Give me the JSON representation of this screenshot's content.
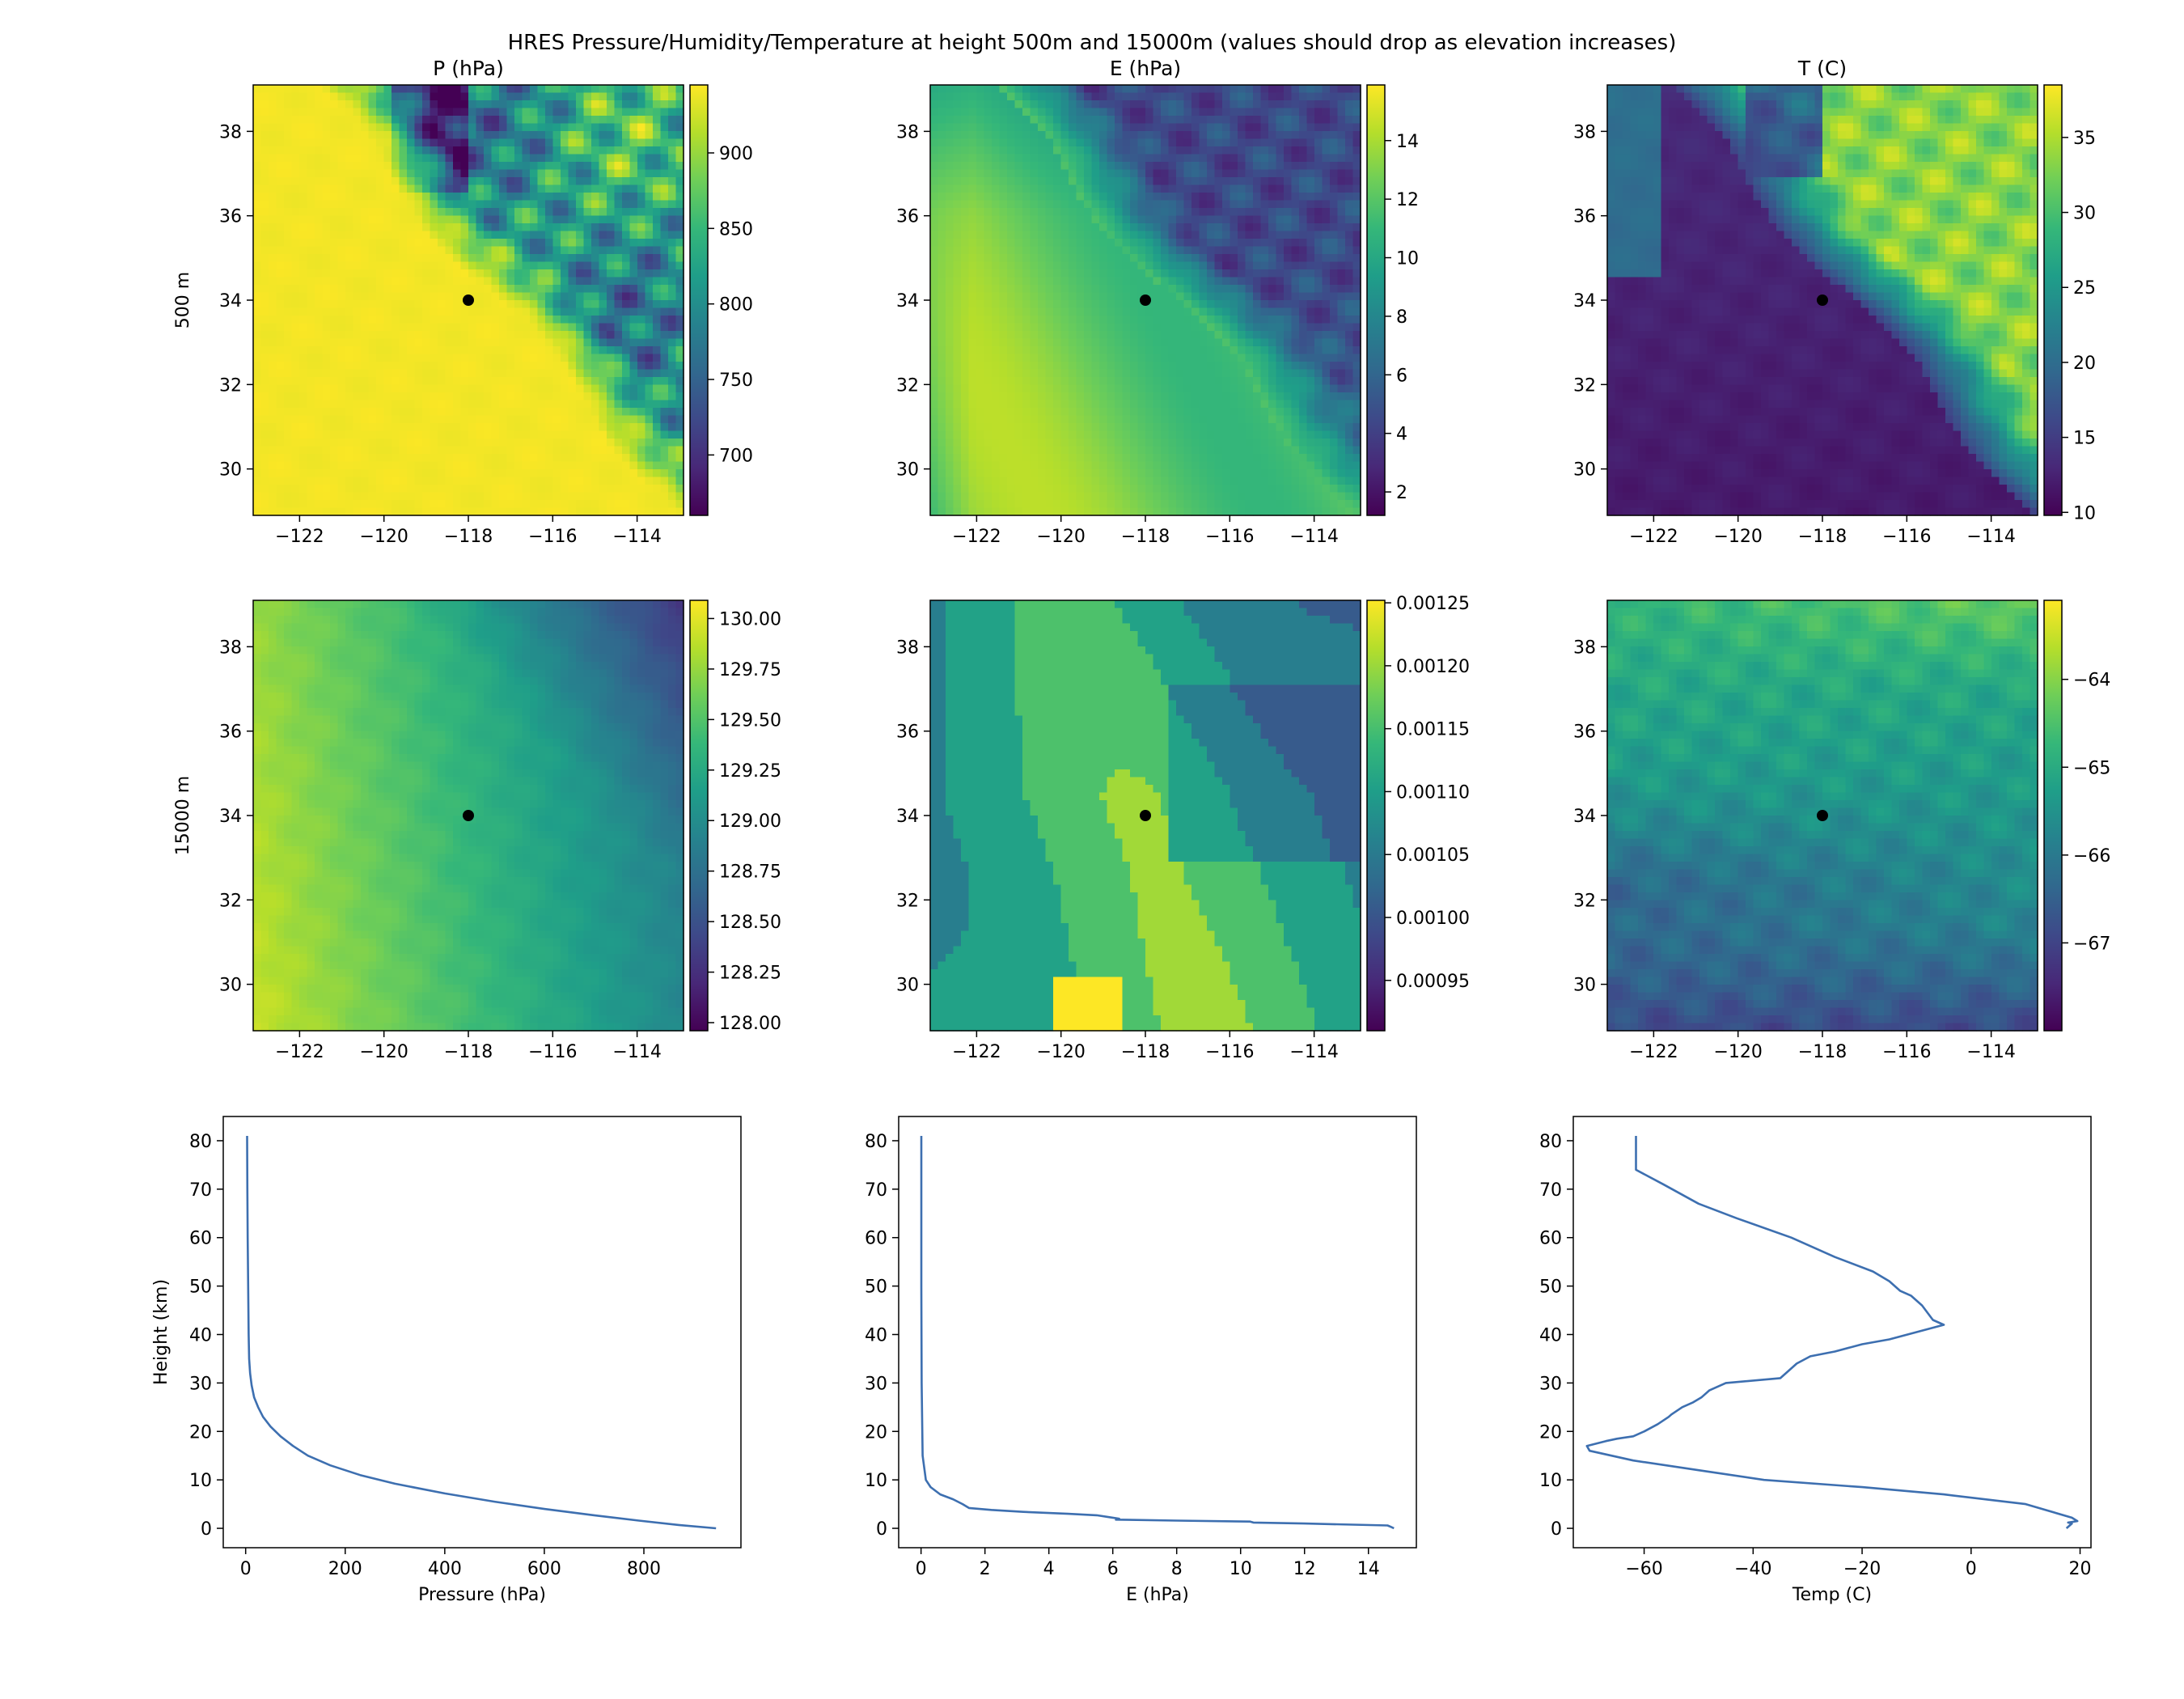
{
  "suptitle": "HRES Pressure/Humidity/Temperature at height 500m and 15000m (values should drop as elevation increases)",
  "colormap": [
    "#440154",
    "#482878",
    "#3e4989",
    "#31688e",
    "#26828e",
    "#1f9e89",
    "#35b779",
    "#6ece58",
    "#b5de2b",
    "#fde725"
  ],
  "marker_color": "#000000",
  "line_color": "#3d6fb0",
  "chart_data": [
    {
      "type": "heatmap",
      "id": "p500",
      "title": "P (hPa)",
      "row_label": "500 m",
      "xlim": [
        -123.1,
        -112.9
      ],
      "ylim": [
        28.9,
        39.1
      ],
      "xticks": [
        "-122",
        "-120",
        "-118",
        "-116",
        "-114"
      ],
      "yticks": [
        "30",
        "32",
        "34",
        "36",
        "38"
      ],
      "clim": [
        660,
        945
      ],
      "cticks": [
        "700",
        "750",
        "800",
        "850",
        "900"
      ],
      "marker": {
        "lon": -118,
        "lat": 34
      },
      "pattern": "pressure500"
    },
    {
      "type": "heatmap",
      "id": "e500",
      "title": "E (hPa)",
      "xlim": [
        -123.1,
        -112.9
      ],
      "ylim": [
        28.9,
        39.1
      ],
      "xticks": [
        "-122",
        "-120",
        "-118",
        "-116",
        "-114"
      ],
      "yticks": [
        "30",
        "32",
        "34",
        "36",
        "38"
      ],
      "clim": [
        1.2,
        15.9
      ],
      "cticks": [
        "2",
        "4",
        "6",
        "8",
        "10",
        "12",
        "14"
      ],
      "marker": {
        "lon": -118,
        "lat": 34
      },
      "pattern": "humidity500"
    },
    {
      "type": "heatmap",
      "id": "t500",
      "title": "T (C)",
      "xlim": [
        -123.1,
        -112.9
      ],
      "ylim": [
        28.9,
        39.1
      ],
      "xticks": [
        "-122",
        "-120",
        "-118",
        "-116",
        "-114"
      ],
      "yticks": [
        "30",
        "32",
        "34",
        "36",
        "38"
      ],
      "clim": [
        9.8,
        38.5
      ],
      "cticks": [
        "10",
        "15",
        "20",
        "25",
        "30",
        "35"
      ],
      "marker": {
        "lon": -118,
        "lat": 34
      },
      "pattern": "temp500"
    },
    {
      "type": "heatmap",
      "id": "p15000",
      "row_label": "15000 m",
      "xlim": [
        -123.1,
        -112.9
      ],
      "ylim": [
        28.9,
        39.1
      ],
      "xticks": [
        "-122",
        "-120",
        "-118",
        "-116",
        "-114"
      ],
      "yticks": [
        "30",
        "32",
        "34",
        "36",
        "38"
      ],
      "clim": [
        127.96,
        130.09
      ],
      "cticks": [
        "128.00",
        "128.25",
        "128.50",
        "128.75",
        "129.00",
        "129.25",
        "129.50",
        "129.75",
        "130.00"
      ],
      "marker": {
        "lon": -118,
        "lat": 34
      },
      "pattern": "pressure15000"
    },
    {
      "type": "heatmap",
      "id": "e15000",
      "xlim": [
        -123.1,
        -112.9
      ],
      "ylim": [
        28.9,
        39.1
      ],
      "xticks": [
        "-122",
        "-120",
        "-118",
        "-116",
        "-114"
      ],
      "yticks": [
        "30",
        "32",
        "34",
        "36",
        "38"
      ],
      "clim": [
        0.00091,
        0.001252
      ],
      "cticks": [
        "0.00095",
        "0.00100",
        "0.00105",
        "0.00110",
        "0.00115",
        "0.00120",
        "0.00125"
      ],
      "marker": {
        "lon": -118,
        "lat": 34
      },
      "pattern": "humidity15000"
    },
    {
      "type": "heatmap",
      "id": "t15000",
      "xlim": [
        -123.1,
        -112.9
      ],
      "ylim": [
        28.9,
        39.1
      ],
      "xticks": [
        "-122",
        "-120",
        "-118",
        "-116",
        "-114"
      ],
      "yticks": [
        "30",
        "32",
        "34",
        "36",
        "38"
      ],
      "clim": [
        -68.0,
        -63.1
      ],
      "cticks": [
        "-67",
        "-66",
        "-65",
        "-64"
      ],
      "marker": {
        "lon": -118,
        "lat": 34
      },
      "pattern": "temp15000"
    },
    {
      "type": "line",
      "id": "p_profile",
      "xlabel": "Pressure (hPa)",
      "ylabel": "Height (km)",
      "xlim": [
        -45,
        995
      ],
      "ylim": [
        -4,
        85
      ],
      "xticks": [
        "0",
        "200",
        "400",
        "600",
        "800"
      ],
      "yticks": [
        "0",
        "10",
        "20",
        "30",
        "40",
        "50",
        "60",
        "70",
        "80"
      ],
      "x": [
        945,
        870,
        790,
        700,
        600,
        500,
        400,
        300,
        230,
        170,
        125,
        95,
        70,
        50,
        35,
        25,
        17,
        12,
        9,
        7,
        6,
        5,
        4,
        3.5,
        3
      ],
      "y": [
        0,
        0.7,
        1.6,
        2.7,
        4.0,
        5.5,
        7.2,
        9.2,
        11.0,
        13.0,
        15.0,
        17.0,
        19.0,
        21.0,
        23.0,
        25.0,
        27.0,
        29.5,
        32.0,
        35.0,
        40.0,
        50.0,
        60.0,
        70.0,
        81.0
      ]
    },
    {
      "type": "line",
      "id": "e_profile",
      "xlabel": "E (hPa)",
      "xlim": [
        -0.7,
        15.5
      ],
      "ylim": [
        -4,
        85
      ],
      "xticks": [
        "0",
        "2",
        "4",
        "6",
        "8",
        "10",
        "12",
        "14"
      ],
      "yticks": [
        "0",
        "10",
        "20",
        "30",
        "40",
        "50",
        "60",
        "70",
        "80"
      ],
      "x": [
        14.8,
        14.7,
        14.6,
        12,
        10.4,
        10.3,
        8,
        6.1,
        6.2,
        5.9,
        5.5,
        4.6,
        3.2,
        2.2,
        1.5,
        1.3,
        1.0,
        0.6,
        0.3,
        0.15,
        0.05,
        0.02,
        0.01,
        0.01,
        0.01
      ],
      "y": [
        0,
        0.3,
        0.6,
        1.0,
        1.2,
        1.4,
        1.6,
        1.8,
        2.0,
        2.3,
        2.7,
        3.0,
        3.4,
        3.8,
        4.2,
        5.0,
        6.0,
        7.0,
        8.5,
        10.0,
        15.0,
        30.0,
        50.0,
        70.0,
        81.0
      ]
    },
    {
      "type": "line",
      "id": "t_profile",
      "xlabel": "Temp (C)",
      "xlim": [
        -73,
        22
      ],
      "ylim": [
        -4,
        85
      ],
      "xticks": [
        "-60",
        "-40",
        "-20",
        "0",
        "20"
      ],
      "yticks": [
        "0",
        "10",
        "20",
        "30",
        "40",
        "50",
        "60",
        "70",
        "80"
      ],
      "x": [
        17.5,
        18.5,
        17.8,
        19.5,
        18.5,
        10,
        -5,
        -20,
        -38,
        -50,
        -62,
        -70,
        -70.5,
        -67,
        -65,
        -62,
        -60,
        -57.5,
        -55.5,
        -55,
        -53,
        -51,
        -49.5,
        -48,
        -45,
        -35,
        -33,
        -32,
        -29.5,
        -25,
        -20,
        -15,
        -5,
        -7,
        -9,
        -11,
        -13,
        -15,
        -18,
        -25,
        -33,
        -43,
        -50,
        -56.5,
        -61.5,
        -61.5
      ],
      "y": [
        0,
        1,
        1.2,
        1.5,
        2.2,
        5,
        7,
        8.5,
        10,
        12,
        14,
        16,
        17,
        18,
        18.5,
        19,
        20,
        21.5,
        23,
        23.5,
        25,
        26,
        27,
        28.5,
        30,
        31,
        33,
        34,
        35.5,
        36.5,
        38,
        39,
        42,
        43,
        46,
        48,
        49,
        51,
        53,
        56,
        60,
        64,
        67,
        71,
        74,
        81
      ]
    }
  ]
}
